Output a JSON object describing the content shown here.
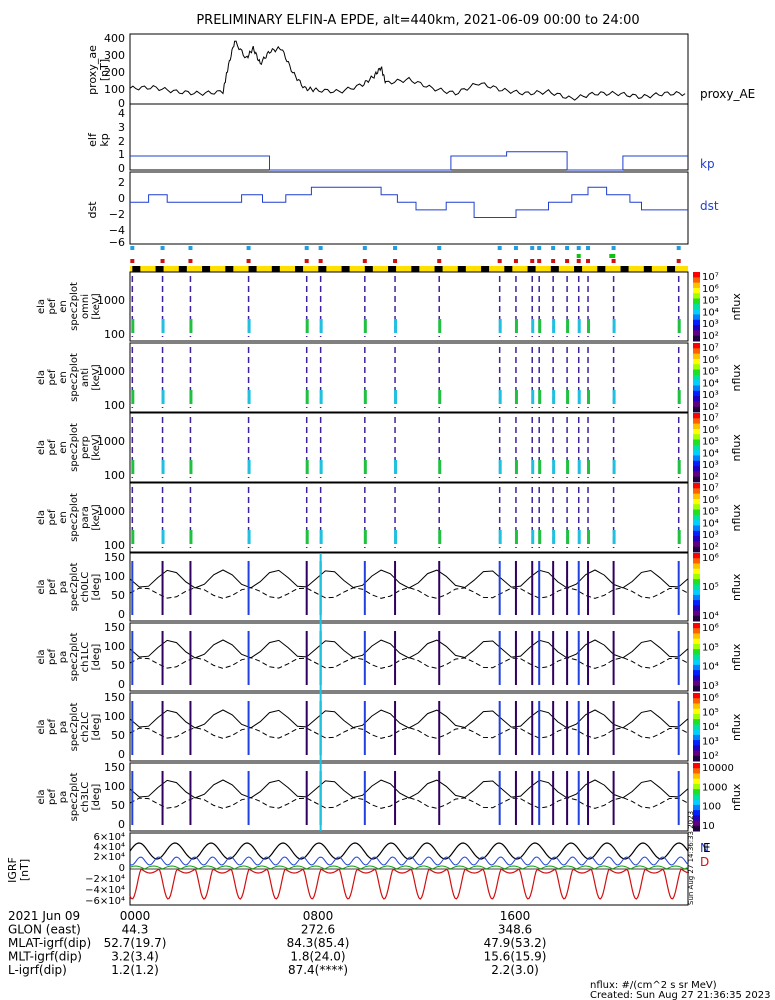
{
  "title": "PRELIMINARY ELFIN-A EPDE, alt=440km, 2021-06-09 00:00 to 24:00",
  "colors": {
    "blue": "#1f3fd0",
    "red": "#d01010",
    "green": "#10a010",
    "black": "#000000",
    "yellow": "#ffe000"
  },
  "panels": {
    "ae": {
      "ylabel": [
        "proxy_ae",
        "[nT]"
      ],
      "yticks": [
        "400",
        "300",
        "200",
        "100",
        "0"
      ],
      "legend": "proxy_AE",
      "ylim": [
        0,
        400
      ]
    },
    "kp": {
      "ylabel": [
        "elf",
        "kp"
      ],
      "yticks": [
        "4",
        "3",
        "2",
        "1",
        "0"
      ],
      "legend": "kp",
      "ylim": [
        0,
        4
      ]
    },
    "dst": {
      "ylabel": [
        "dst"
      ],
      "yticks": [
        "2",
        "0",
        "−2",
        "−4",
        "−6"
      ],
      "legend": "dst",
      "ylim": [
        -6,
        3
      ]
    },
    "spec": [
      {
        "ylabel": [
          "ela",
          "pef",
          "en",
          "spec2plot",
          "omni",
          "[keV]"
        ]
      },
      {
        "ylabel": [
          "ela",
          "pef",
          "en",
          "spec2plot",
          "anti",
          "[keV]"
        ]
      },
      {
        "ylabel": [
          "ela",
          "pef",
          "en",
          "spec2plot",
          "perp",
          "[keV]"
        ]
      },
      {
        "ylabel": [
          "ela",
          "pef",
          "en",
          "spec2plot",
          "para",
          "[keV]"
        ]
      }
    ],
    "spec_yticks": [
      "1000",
      "100"
    ],
    "spec_cbar": {
      "labels": [
        "10⁷",
        "10⁶",
        "10⁵",
        "10⁴",
        "10³",
        "10²"
      ],
      "unit": "nflux"
    },
    "pa": [
      {
        "ylabel": [
          "ela",
          "pef",
          "pa",
          "spec2plot",
          "ch0LC",
          "[deg]"
        ],
        "cbar": [
          "10⁶",
          "10⁵",
          "10⁴"
        ]
      },
      {
        "ylabel": [
          "ela",
          "pef",
          "pa",
          "spec2plot",
          "ch1LC",
          "[deg]"
        ],
        "cbar": [
          "10⁶",
          "10⁵",
          "10⁴",
          "10³"
        ]
      },
      {
        "ylabel": [
          "ela",
          "pef",
          "pa",
          "spec2plot",
          "ch2LC",
          "[deg]"
        ],
        "cbar": [
          "10⁶",
          "10⁵",
          "10⁴",
          "10³",
          "10²"
        ]
      },
      {
        "ylabel": [
          "ela",
          "pef",
          "pa",
          "spec2plot",
          "ch3LC",
          "[deg]"
        ],
        "cbar": [
          "10000",
          "1000",
          "100",
          "10"
        ]
      }
    ],
    "pa_yticks": [
      "150",
      "100",
      "50",
      "0"
    ],
    "pa_unit": "nflux",
    "grf": {
      "ylabel": [
        "IGRF",
        "[nT]"
      ],
      "yticks": [
        "6×10⁴",
        "4×10⁴",
        "2×10⁴",
        "0",
        "−2×10⁴",
        "−4×10⁴",
        "−6×10⁴"
      ],
      "legend": [
        "N",
        "E",
        "D"
      ]
    }
  },
  "side_stamp": "Sun Aug 27 14:36:33 2023",
  "chart_data": {
    "type": "line",
    "x_range_hours": [
      0,
      24
    ],
    "proxy_ae": {
      "x": [
        0,
        1,
        2,
        3,
        4,
        4.2,
        4.5,
        5,
        5.3,
        5.6,
        6,
        6.5,
        7,
        7.5,
        8,
        9,
        10,
        10.5,
        10.8,
        11,
        12,
        13,
        14,
        15,
        16,
        17,
        18,
        19,
        20,
        21,
        22,
        23,
        24
      ],
      "y": [
        90,
        95,
        70,
        60,
        70,
        200,
        360,
        260,
        320,
        230,
        300,
        320,
        180,
        90,
        80,
        70,
        110,
        160,
        210,
        120,
        140,
        90,
        60,
        120,
        80,
        60,
        70,
        30,
        60,
        60,
        40,
        60,
        60
      ]
    },
    "kp": {
      "x": [
        0,
        6,
        6,
        13.8,
        13.8,
        16.2,
        16.2,
        18.8,
        18.8,
        21.2,
        21.2,
        24
      ],
      "y": [
        1,
        1,
        0,
        0,
        1,
        1,
        1.3,
        1.3,
        0,
        0,
        1,
        1
      ]
    },
    "dst": {
      "x": [
        0,
        0.8,
        0.8,
        1.6,
        1.6,
        4.8,
        4.8,
        5.7,
        5.7,
        6.7,
        6.7,
        7.8,
        7.8,
        10.8,
        10.8,
        11.5,
        11.5,
        12.3,
        12.3,
        13.6,
        13.6,
        14.2,
        14.2,
        14.8,
        14.8,
        16.6,
        16.6,
        18,
        18,
        19,
        19,
        19.7,
        19.7,
        20,
        20,
        20.5,
        20.5,
        21.5,
        21.5,
        22,
        22,
        23,
        23,
        24
      ],
      "y": [
        -1,
        -1,
        0,
        0,
        -1,
        -1,
        0,
        0,
        -1,
        -1,
        0,
        0,
        1,
        1,
        0,
        0,
        -1,
        -1,
        -2,
        -2,
        -1,
        -1,
        -1,
        -1,
        -3,
        -3,
        -2,
        -2,
        -1,
        -1,
        0,
        0,
        1,
        1,
        1,
        1,
        0,
        0,
        -1,
        -1,
        -2,
        -2,
        -2,
        -2
      ]
    },
    "orbit_passes_hours": [
      0.1,
      1.4,
      2.6,
      5.1,
      7.6,
      8.2,
      10.1,
      11.4,
      13.3,
      15.9,
      16.6,
      17.3,
      17.6,
      18.2,
      18.8,
      19.3,
      19.7,
      20.8,
      23.6
    ],
    "igrf": {
      "series": [
        {
          "name": "N",
          "description": "magnitude ~4e4 oscillating"
        },
        {
          "name": "E",
          "description": "~1e4 oscillating"
        },
        {
          "name": "D",
          "description": "dips to -5e4 at each pass"
        }
      ]
    }
  },
  "footer": {
    "rows": [
      {
        "label": "2021 Jun 09",
        "vals": [
          "0000",
          "0800",
          "1600"
        ]
      },
      {
        "label": "GLON (east)",
        "vals": [
          "44.3",
          "272.6",
          "348.6"
        ]
      },
      {
        "label": "MLAT-igrf(dip)",
        "vals": [
          "52.7(19.7)",
          "84.3(85.4)",
          "47.9(53.2)"
        ]
      },
      {
        "label": "MLT-igrf(dip)",
        "vals": [
          "3.2(3.4)",
          "1.8(24.0)",
          "15.6(15.9)"
        ]
      },
      {
        "label": "L-igrf(dip)",
        "vals": [
          "1.2(1.2)",
          "87.4(****)",
          "2.2(3.0)"
        ]
      }
    ],
    "note1": "nflux: #/(cm^2 s sr MeV)",
    "note2": "Created: Sun Aug 27 21:36:35 2023"
  }
}
